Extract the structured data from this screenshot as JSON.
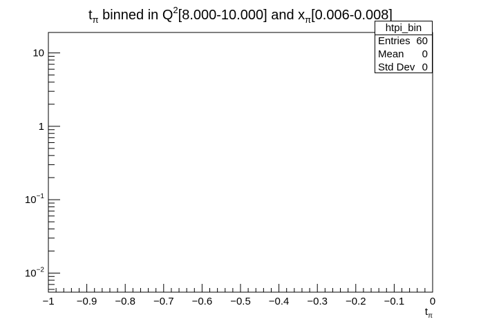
{
  "chart_data": {
    "type": "histogram",
    "title_parts": {
      "t": "t",
      "pi": "π",
      "binned_in": " binned in Q",
      "q_exp": "2",
      "q_range": "[8.000-10.000] and x",
      "x_range": "[0.006-0.008]"
    },
    "xlabel": {
      "base": "t",
      "sub": "π"
    },
    "ylabel": "",
    "x_range": [
      -1,
      0
    ],
    "y_range": [
      0.0055,
      19
    ],
    "y_scale": "log",
    "x_tick_labels": [
      {
        "value": -1,
        "label": "−1"
      },
      {
        "value": -0.9,
        "label": "−0.9"
      },
      {
        "value": -0.8,
        "label": "−0.8"
      },
      {
        "value": -0.7,
        "label": "−0.7"
      },
      {
        "value": -0.6,
        "label": "−0.6"
      },
      {
        "value": -0.5,
        "label": "−0.5"
      },
      {
        "value": -0.4,
        "label": "−0.4"
      },
      {
        "value": -0.3,
        "label": "−0.3"
      },
      {
        "value": -0.2,
        "label": "−0.2"
      },
      {
        "value": -0.1,
        "label": "−0.1"
      },
      {
        "value": 0,
        "label": "0"
      }
    ],
    "y_tick_labels": [
      {
        "value": 10,
        "label": "10",
        "exp": ""
      },
      {
        "value": 1,
        "label": "1",
        "exp": ""
      },
      {
        "value": 0.1,
        "label": "10",
        "exp": "−1"
      },
      {
        "value": 0.01,
        "label": "10",
        "exp": "−2"
      }
    ],
    "series": [],
    "stats_box": {
      "name": "htpi_bin",
      "rows": [
        {
          "label": "Entries",
          "value": "60"
        },
        {
          "label": "Mean",
          "value": "0"
        },
        {
          "label": "Std Dev",
          "value": "0"
        }
      ]
    }
  },
  "colors": {
    "axis": "#000000",
    "background": "#ffffff"
  }
}
